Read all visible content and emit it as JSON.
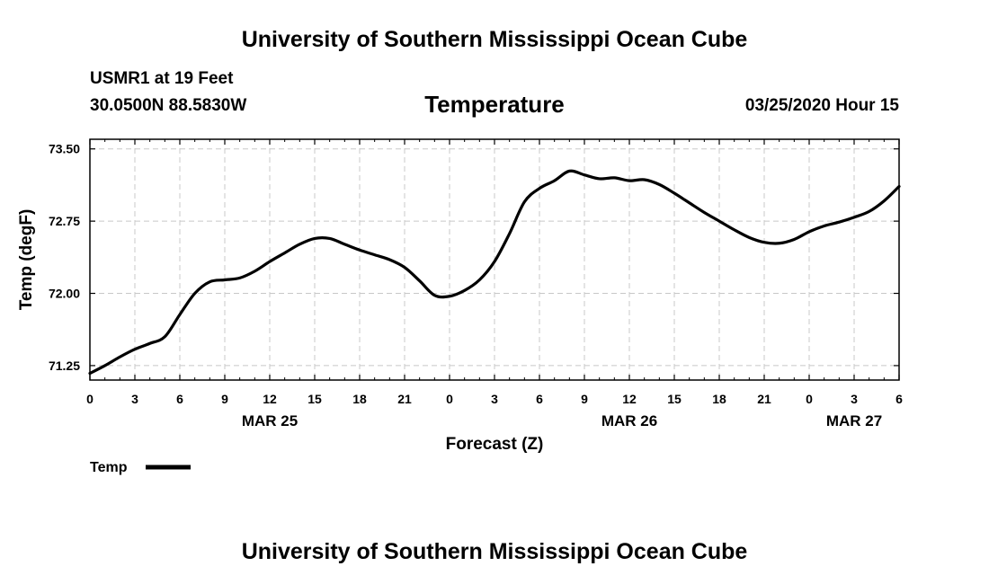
{
  "header": {
    "top_title": "University of Southern Mississippi Ocean Cube",
    "bottom_title": "University of Southern Mississippi Ocean Cube",
    "station": "USMR1 at 19 Feet",
    "coords": "30.0500N 88.5830W",
    "variable": "Temperature",
    "datetime": "03/25/2020 Hour 15"
  },
  "chart_data": {
    "type": "line",
    "title": "Temperature",
    "xlabel": "Forecast (Z)",
    "ylabel": "Temp (degF)",
    "xlim": [
      0,
      54
    ],
    "ylim": [
      71.1,
      73.6
    ],
    "yticks": [
      71.25,
      72.0,
      72.75,
      73.5
    ],
    "ytick_labels": [
      "71.25",
      "72.00",
      "72.75",
      "73.50"
    ],
    "xticks": [
      0,
      3,
      6,
      9,
      12,
      15,
      18,
      21,
      24,
      27,
      30,
      33,
      36,
      39,
      42,
      45,
      48,
      51,
      54
    ],
    "xtick_labels": [
      "0",
      "3",
      "6",
      "9",
      "12",
      "15",
      "18",
      "21",
      "0",
      "3",
      "6",
      "9",
      "12",
      "15",
      "18",
      "21",
      "0",
      "3",
      "6"
    ],
    "date_labels": [
      {
        "label": "MAR 25",
        "x": 12
      },
      {
        "label": "MAR 26",
        "x": 36
      },
      {
        "label": "MAR 27",
        "x": 51
      }
    ],
    "grid": true,
    "legend": {
      "position": "bottom-left",
      "entries": [
        "Temp"
      ]
    },
    "series": [
      {
        "name": "Temp",
        "color": "#000000",
        "x": [
          0,
          1,
          2,
          3,
          4,
          5,
          6,
          7,
          8,
          9,
          10,
          11,
          12,
          13,
          14,
          15,
          16,
          17,
          18,
          19,
          20,
          21,
          22,
          23,
          24,
          25,
          26,
          27,
          28,
          29,
          30,
          31,
          32,
          33,
          34,
          35,
          36,
          37,
          38,
          39,
          40,
          41,
          42,
          43,
          44,
          45,
          46,
          47,
          48,
          49,
          50,
          51,
          52,
          53,
          54
        ],
        "values": [
          71.17,
          71.25,
          71.34,
          71.42,
          71.48,
          71.55,
          71.78,
          72.0,
          72.12,
          72.14,
          72.16,
          72.23,
          72.33,
          72.42,
          72.51,
          72.57,
          72.57,
          72.51,
          72.45,
          72.4,
          72.35,
          72.27,
          72.13,
          71.98,
          71.97,
          72.03,
          72.14,
          72.33,
          72.62,
          72.95,
          73.09,
          73.17,
          73.27,
          73.23,
          73.19,
          73.2,
          73.17,
          73.18,
          73.13,
          73.04,
          72.94,
          72.84,
          72.75,
          72.66,
          72.58,
          72.53,
          72.52,
          72.56,
          72.64,
          72.7,
          72.74,
          72.79,
          72.85,
          72.96,
          73.11
        ]
      }
    ]
  }
}
